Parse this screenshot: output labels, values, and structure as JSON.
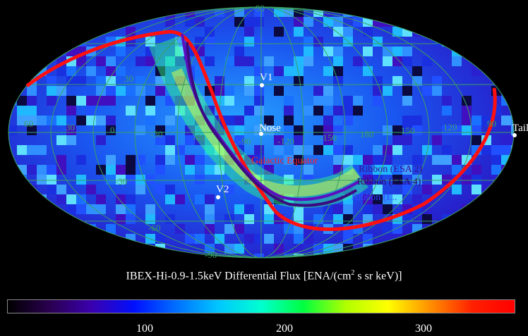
{
  "grid_labels": {
    "lat": [
      "90",
      "30",
      "-30",
      "-60",
      "-90"
    ],
    "lon": [
      "60",
      "30",
      "0",
      "-30",
      "-60",
      "-90",
      "-120",
      "-150",
      "180",
      "150",
      "120",
      "90"
    ]
  },
  "points": {
    "v1": "V1",
    "nose": "Nose",
    "v2": "V2",
    "tail": "Tail"
  },
  "curves": {
    "galactic_equator": "Galactic Equator",
    "ribbon_esa2": "Ribbon (ESA 2)",
    "ribbon_esa4": "Ribbon (ESA 4)",
    "ribbon_ibex": "Ribbon (I..."
  },
  "caption": {
    "prefix": "IBEX-Hi-0.9-1.5keV Differential Flux [ENA/(cm",
    "sup": "2",
    "suffix": " s sr keV)]"
  },
  "colorbar": {
    "ticks": [
      "100",
      "200",
      "300"
    ],
    "colors": [
      "#000000",
      "#2a0050",
      "#3a00b0",
      "#0010ff",
      "#0070ff",
      "#00c8ff",
      "#00ffd0",
      "#00ff40",
      "#b0ff00",
      "#ffff00",
      "#ff9000",
      "#ff2000",
      "#ff0000"
    ]
  },
  "colors": {
    "galactic_equator": "#ff1010",
    "ribbon_esa2": "#5a10c0",
    "ribbon_esa4": "#3c0a80",
    "grid": "#3aa060"
  }
}
